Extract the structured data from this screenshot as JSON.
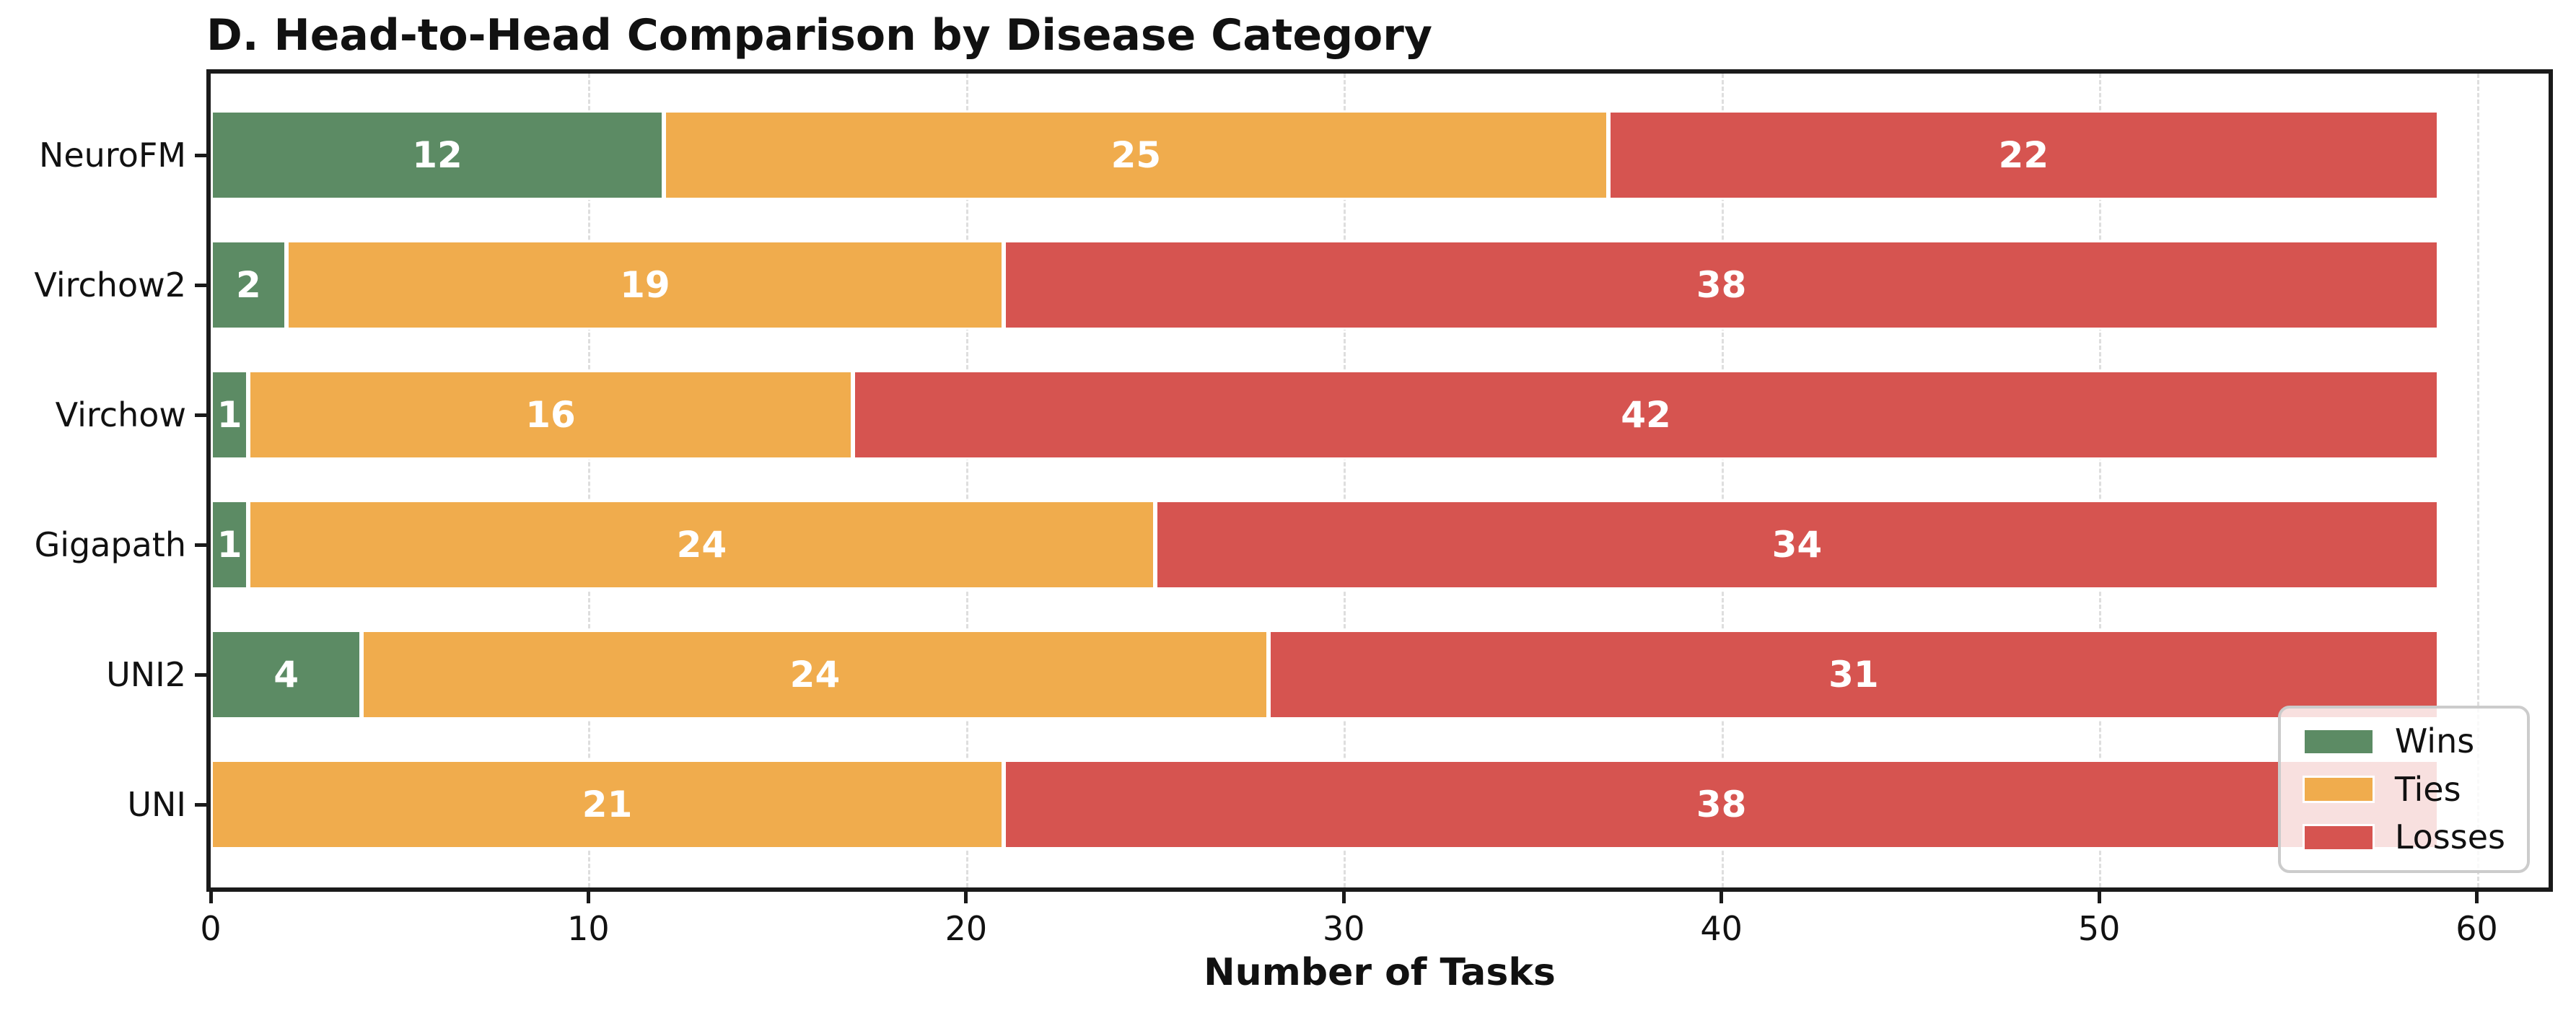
{
  "title": "D. Head-to-Head Comparison by Disease Category",
  "colors": {
    "wins": "#5c8b64",
    "ties": "#f0ac4d",
    "losses": "#d65450",
    "grid": "#dedede",
    "spine": "#1a1a1a",
    "legend_border": "#cccccc",
    "bar_label_text": "#ffffff"
  },
  "chart_data": {
    "type": "bar",
    "orientation": "horizontal",
    "stacked": true,
    "title": "D. Head-to-Head Comparison by Disease Category",
    "xlabel": "Number of Tasks",
    "ylabel": "",
    "categories": [
      "NeuroFM",
      "Virchow2",
      "Virchow",
      "Gigapath",
      "UNI2",
      "UNI"
    ],
    "series": [
      {
        "name": "Wins",
        "color": "#5c8b64",
        "values": [
          12,
          2,
          1,
          1,
          4,
          0
        ]
      },
      {
        "name": "Ties",
        "color": "#f0ac4d",
        "values": [
          25,
          19,
          16,
          24,
          24,
          21
        ]
      },
      {
        "name": "Losses",
        "color": "#d65450",
        "values": [
          22,
          38,
          42,
          34,
          31,
          38
        ]
      }
    ],
    "row_totals": [
      59,
      59,
      59,
      59,
      59,
      59
    ],
    "xticks": [
      0,
      10,
      20,
      30,
      40,
      50,
      60
    ],
    "xlim": [
      0,
      61.9
    ],
    "grid": "vertical-dashed",
    "bar_value_labels": "white-bold-centered-shown-when-nonzero",
    "legend_position": "lower right",
    "legend": [
      "Wins",
      "Ties",
      "Losses"
    ]
  }
}
